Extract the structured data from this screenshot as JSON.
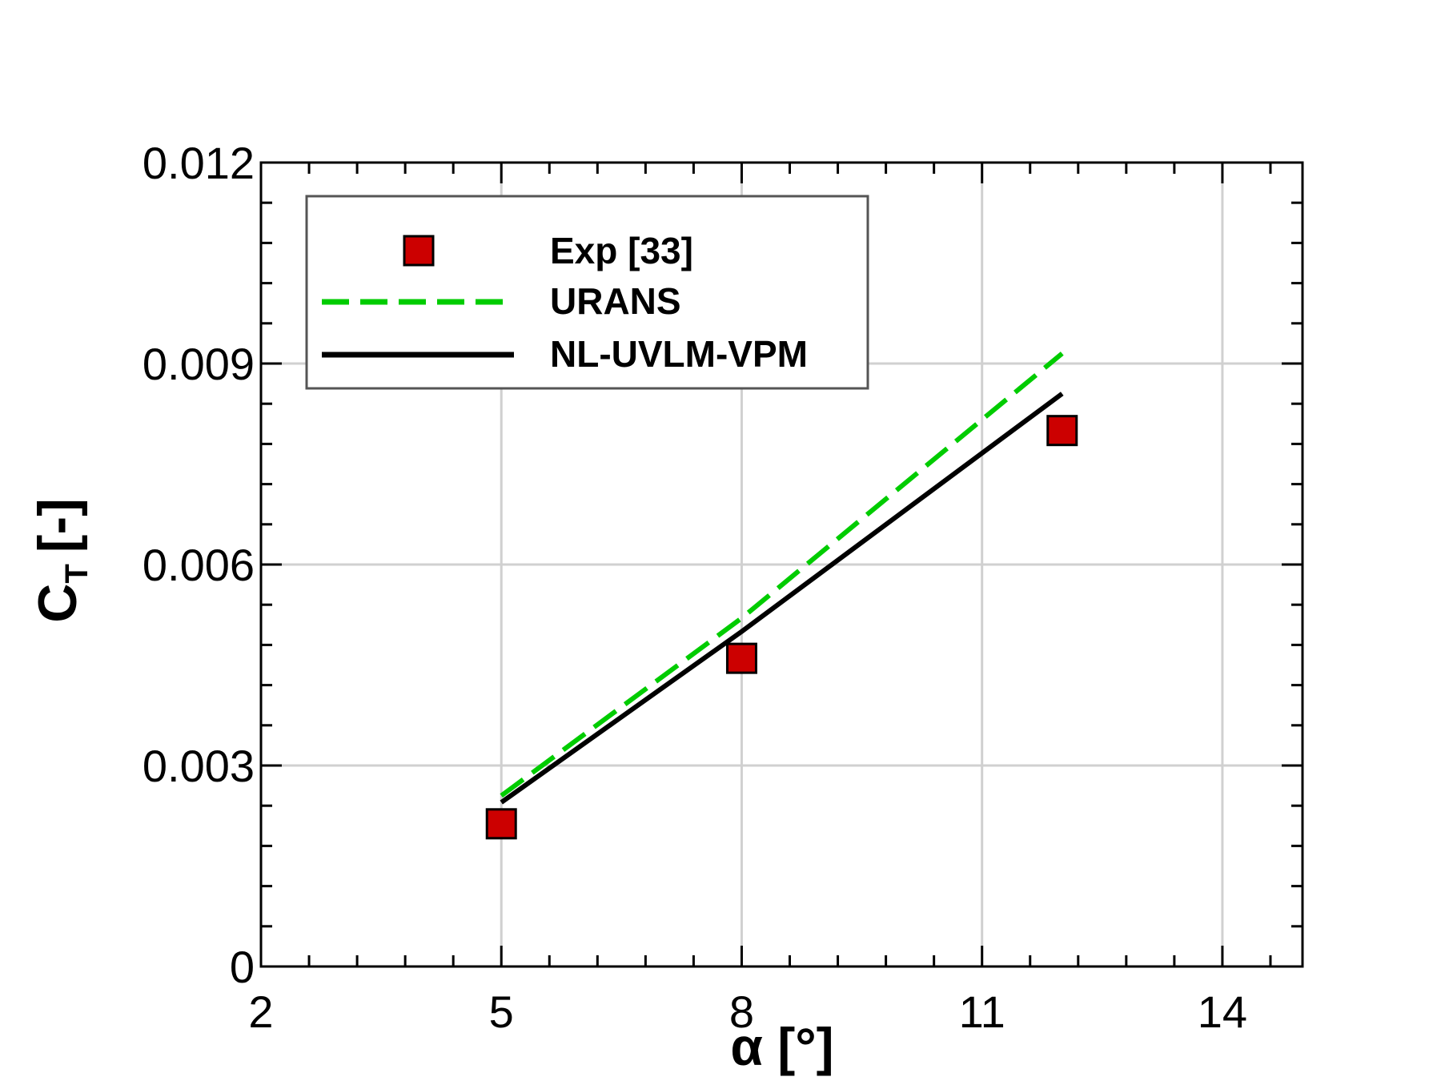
{
  "chart_data": {
    "type": "line",
    "title": "",
    "xlabel": "α [°]",
    "ylabel": {
      "main": "C",
      "subscript": "T",
      "unit": "[-]"
    },
    "xlim": [
      2,
      15
    ],
    "ylim": [
      0,
      0.012
    ],
    "x_ticks": [
      2,
      5,
      8,
      11,
      14
    ],
    "x_tick_labels": [
      "2",
      "5",
      "8",
      "11",
      "14"
    ],
    "x_minor_step": 0.6,
    "y_ticks": [
      0,
      0.003,
      0.006,
      0.009,
      0.012
    ],
    "y_tick_labels": [
      "0",
      "0.003",
      "0.006",
      "0.009",
      "0.012"
    ],
    "y_minor_step": 0.0006,
    "grid": true,
    "legend_position": "top-left",
    "series": [
      {
        "name": "Exp [33]",
        "kind": "marker",
        "color": "#cc0000",
        "x": [
          5,
          8,
          12
        ],
        "y": [
          0.00213,
          0.0046,
          0.008
        ]
      },
      {
        "name": "URANS",
        "kind": "dashed-line",
        "color": "#00cc00",
        "x": [
          5,
          8,
          12
        ],
        "y": [
          0.00255,
          0.0052,
          0.00915
        ]
      },
      {
        "name": "NL-UVLM-VPM",
        "kind": "solid-line",
        "color": "#000000",
        "x": [
          5,
          8,
          12
        ],
        "y": [
          0.00245,
          0.005,
          0.00855
        ]
      }
    ]
  }
}
